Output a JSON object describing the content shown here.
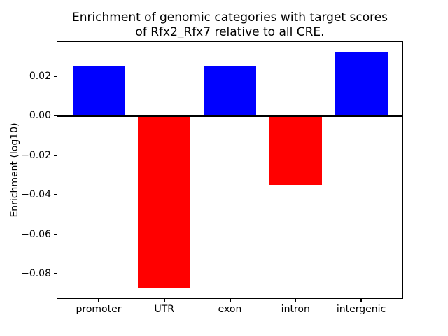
{
  "figure": {
    "title": "Enrichment of genomic categories with target scores\nof Rfx2_Rfx7 relative to all CRE.",
    "ylabel": "Enrichment (log10)"
  },
  "chart_data": {
    "type": "bar",
    "title": "Enrichment of genomic categories with target scores of Rfx2_Rfx7 relative to all CRE.",
    "xlabel": "",
    "ylabel": "Enrichment (log10)",
    "categories": [
      "promoter",
      "UTR",
      "exon",
      "intron",
      "intergenic"
    ],
    "values": [
      0.025,
      -0.087,
      0.025,
      -0.035,
      0.032
    ],
    "bar_colors": [
      "#0000ff",
      "#ff0000",
      "#0000ff",
      "#ff0000",
      "#0000ff"
    ],
    "positive_color": "#0000ff",
    "negative_color": "#ff0000",
    "background_color": "#ffffff",
    "axis_color": "#000000",
    "ylim": [
      -0.0926,
      0.0376
    ],
    "xlim": [
      -0.64,
      4.64
    ],
    "bar_width_data_units": 0.8,
    "yticks": [
      {
        "value": 0.02,
        "label": "0.02"
      },
      {
        "value": 0.0,
        "label": "0.00"
      },
      {
        "value": -0.02,
        "label": "−0.02"
      },
      {
        "value": -0.04,
        "label": "−0.04"
      },
      {
        "value": -0.06,
        "label": "−0.06"
      },
      {
        "value": -0.08,
        "label": "−0.08"
      }
    ],
    "grid": false,
    "legend": null,
    "zero_line": true
  }
}
